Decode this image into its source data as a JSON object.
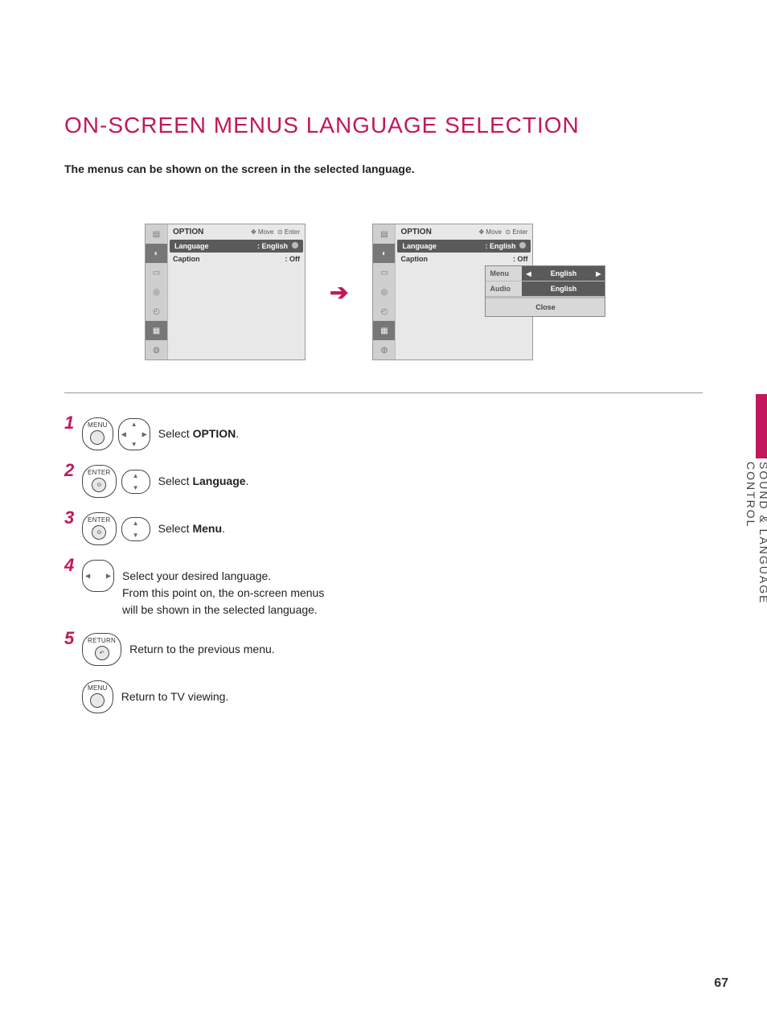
{
  "title": "ON-SCREEN MENUS LANGUAGE SELECTION",
  "subtitle": "The menus can be shown on the screen in the selected language.",
  "side_tab": "SOUND & LANGUAGE CONTROL",
  "page_number": "67",
  "colors": {
    "accent": "#c2185b",
    "osd_dark": "#5a5a5a",
    "osd_light": "#e8e8e8"
  },
  "osd": {
    "header": "OPTION",
    "hint_move": "Move",
    "hint_enter": "Enter",
    "rows": [
      {
        "label": "Language",
        "value": ": English",
        "selected": true
      },
      {
        "label": "Caption",
        "value": ": Off",
        "selected": false
      }
    ]
  },
  "submenu": {
    "rows": [
      {
        "label": "Menu",
        "value": "English",
        "arrows": true
      },
      {
        "label": "Audio",
        "value": "English",
        "arrows": false
      }
    ],
    "close": "Close"
  },
  "steps": [
    {
      "num": "1",
      "buttons": [
        {
          "type": "labeled",
          "label": "MENU"
        },
        {
          "type": "nav4"
        }
      ],
      "text_pre": "Select ",
      "text_bold": "OPTION",
      "text_post": "."
    },
    {
      "num": "2",
      "buttons": [
        {
          "type": "labeled",
          "label": "ENTER",
          "dot": true
        },
        {
          "type": "updown"
        }
      ],
      "text_pre": "Select ",
      "text_bold": "Language",
      "text_post": "."
    },
    {
      "num": "3",
      "buttons": [
        {
          "type": "labeled",
          "label": "ENTER",
          "dot": true
        },
        {
          "type": "updown"
        }
      ],
      "text_pre": "Select ",
      "text_bold": "Menu",
      "text_post": "."
    },
    {
      "num": "4",
      "buttons": [
        {
          "type": "leftright"
        }
      ],
      "text_lines": [
        "Select your desired language.",
        "From this point on, the on-screen menus",
        "will be shown in the selected language."
      ]
    },
    {
      "num": "5",
      "buttons": [
        {
          "type": "labeled",
          "label": "RETURN",
          "ret": true
        }
      ],
      "text_plain": "Return to the previous menu."
    },
    {
      "num": "",
      "buttons": [
        {
          "type": "labeled",
          "label": "MENU"
        }
      ],
      "text_plain": "Return to TV viewing."
    }
  ]
}
